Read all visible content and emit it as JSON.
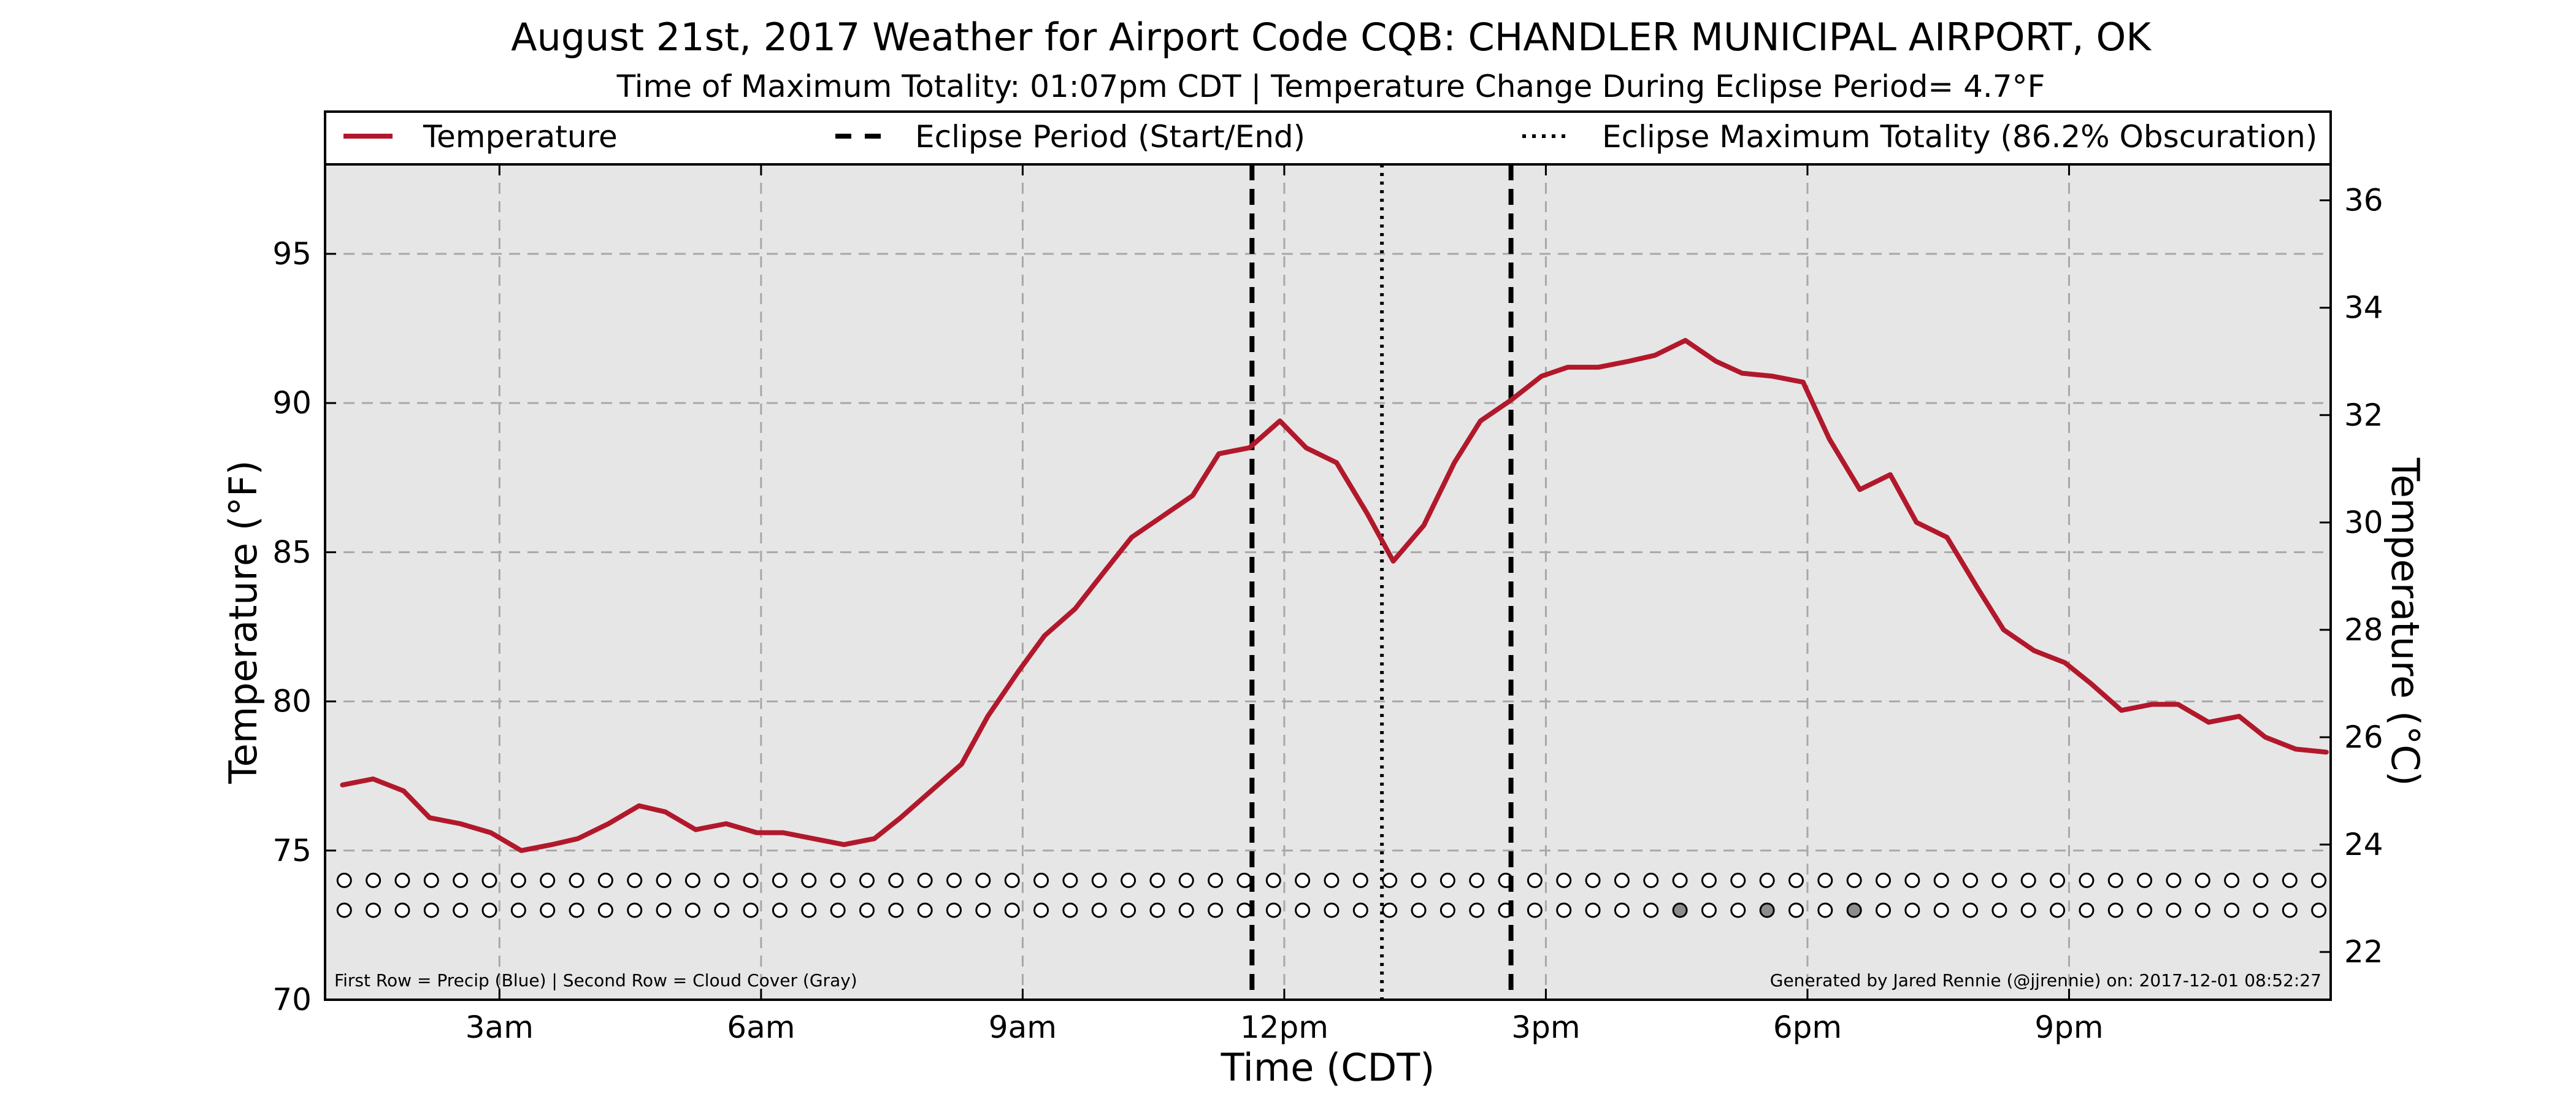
{
  "chart_data": {
    "type": "line",
    "title": "August 21st, 2017 Weather for Airport Code CQB: CHANDLER MUNICIPAL AIRPORT, OK",
    "subtitle": "Time of Maximum Totality: 01:07pm CDT | Temperature Change During Eclipse Period= 4.7°F",
    "xlabel": "Time (CDT)",
    "ylabel": "Temperature (°F)",
    "ylabel_right": "Temperature (°C)",
    "xlim": [
      1.0,
      24.0
    ],
    "ylim": [
      70,
      98
    ],
    "ylim_right": [
      21.11,
      36.67
    ],
    "x_ticks": [
      {
        "value": 3,
        "label": "3am"
      },
      {
        "value": 6,
        "label": "6am"
      },
      {
        "value": 9,
        "label": "9am"
      },
      {
        "value": 12,
        "label": "12pm"
      },
      {
        "value": 15,
        "label": "3pm"
      },
      {
        "value": 18,
        "label": "6pm"
      },
      {
        "value": 21,
        "label": "9pm"
      }
    ],
    "y_ticks": [
      70,
      75,
      80,
      85,
      90,
      95
    ],
    "y_ticks_right": [
      22,
      24,
      26,
      28,
      30,
      32,
      34,
      36
    ],
    "grid": true,
    "legend": {
      "placement": "top",
      "entries": [
        {
          "label": "Temperature",
          "style": "solid",
          "color": "#b2182b"
        },
        {
          "label": "Eclipse Period (Start/End)",
          "style": "dashed",
          "color": "#000000"
        },
        {
          "label": "Eclipse Maximum Totality (86.2% Obscuration)",
          "style": "dotted",
          "color": "#000000"
        }
      ]
    },
    "series": [
      {
        "name": "Temperature",
        "color": "#b2182b",
        "points": [
          [
            1.2,
            77.2
          ],
          [
            1.55,
            77.4
          ],
          [
            1.9,
            77.0
          ],
          [
            2.2,
            76.1
          ],
          [
            2.55,
            75.9
          ],
          [
            2.9,
            75.6
          ],
          [
            3.25,
            75.0
          ],
          [
            3.6,
            75.2
          ],
          [
            3.9,
            75.4
          ],
          [
            4.25,
            75.9
          ],
          [
            4.6,
            76.5
          ],
          [
            4.9,
            76.3
          ],
          [
            5.25,
            75.7
          ],
          [
            5.6,
            75.9
          ],
          [
            5.95,
            75.6
          ],
          [
            6.25,
            75.6
          ],
          [
            6.6,
            75.4
          ],
          [
            6.95,
            75.2
          ],
          [
            7.3,
            75.4
          ],
          [
            7.6,
            76.1
          ],
          [
            7.95,
            77.0
          ],
          [
            8.3,
            77.9
          ],
          [
            8.6,
            79.5
          ],
          [
            8.95,
            81.0
          ],
          [
            9.25,
            82.2
          ],
          [
            9.6,
            83.1
          ],
          [
            9.95,
            84.4
          ],
          [
            10.25,
            85.5
          ],
          [
            10.6,
            86.2
          ],
          [
            10.95,
            86.9
          ],
          [
            11.25,
            88.3
          ],
          [
            11.6,
            88.5
          ],
          [
            11.95,
            89.4
          ],
          [
            12.25,
            88.5
          ],
          [
            12.6,
            88.0
          ],
          [
            12.95,
            86.3
          ],
          [
            13.25,
            84.7
          ],
          [
            13.6,
            85.9
          ],
          [
            13.95,
            88.0
          ],
          [
            14.25,
            89.4
          ],
          [
            14.6,
            90.1
          ],
          [
            14.95,
            90.9
          ],
          [
            15.25,
            91.2
          ],
          [
            15.6,
            91.2
          ],
          [
            15.95,
            91.4
          ],
          [
            16.25,
            91.6
          ],
          [
            16.6,
            92.1
          ],
          [
            16.95,
            91.4
          ],
          [
            17.25,
            91.0
          ],
          [
            17.6,
            90.9
          ],
          [
            17.95,
            90.7
          ],
          [
            18.25,
            88.8
          ],
          [
            18.6,
            87.1
          ],
          [
            18.95,
            87.6
          ],
          [
            19.25,
            86.0
          ],
          [
            19.6,
            85.5
          ],
          [
            19.95,
            83.8
          ],
          [
            20.25,
            82.4
          ],
          [
            20.6,
            81.7
          ],
          [
            20.95,
            81.3
          ],
          [
            21.25,
            80.6
          ],
          [
            21.6,
            79.7
          ],
          [
            21.95,
            79.9
          ],
          [
            22.25,
            79.9
          ],
          [
            22.6,
            79.3
          ],
          [
            22.95,
            79.5
          ],
          [
            23.25,
            78.8
          ],
          [
            23.6,
            78.4
          ],
          [
            23.95,
            78.3
          ]
        ]
      }
    ],
    "eclipse_lines": {
      "start": 11.63,
      "end": 14.6,
      "max_totality": 13.12
    },
    "observation_rows": {
      "precip_y": 74.0,
      "cloud_y": 73.0,
      "start": 1.22,
      "step": 0.333,
      "count": 69,
      "cloud_filled": [
        16.55,
        17.55,
        18.55
      ],
      "empty_color": "#ffffff",
      "filled_color": "#8c8c8c"
    },
    "footnote_left": "First Row = Precip (Blue) | Second Row = Cloud Cover (Gray)",
    "footnote_right": "Generated by Jared Rennie (@jjrennie) on: 2017-12-01 08:52:27"
  }
}
